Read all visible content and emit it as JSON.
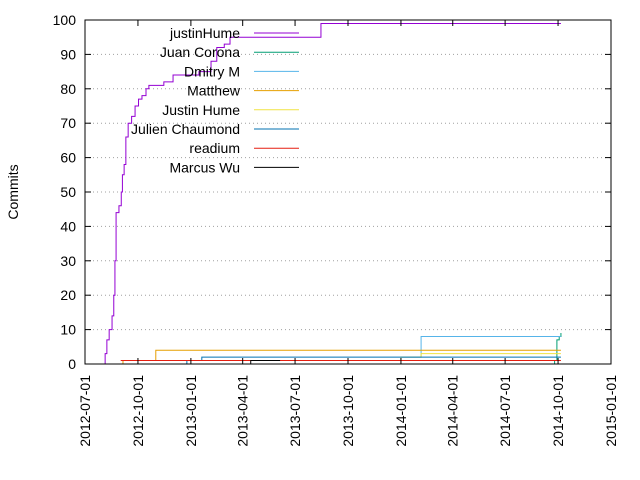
{
  "chart_data": {
    "type": "line",
    "title": "",
    "xlabel": "",
    "ylabel": "Commits",
    "ylim": [
      0,
      100
    ],
    "xlim": [
      "2012-07-01",
      "2015-01-01"
    ],
    "grid": "horizontal dotted",
    "legend_position": "top-left",
    "y_ticks": [
      "0",
      "10",
      "20",
      "30",
      "40",
      "50",
      "60",
      "70",
      "80",
      "90",
      "100"
    ],
    "x_ticks": [
      "2012-07-01",
      "2012-10-01",
      "2013-01-01",
      "2013-04-01",
      "2013-07-01",
      "2013-10-01",
      "2014-01-01",
      "2014-04-01",
      "2014-07-01",
      "2014-10-01",
      "2015-01-01"
    ],
    "series": [
      {
        "name": "justinHume",
        "color": "#9400d3",
        "step": true,
        "points": [
          [
            "2012-08-01",
            0
          ],
          [
            "2012-08-05",
            3
          ],
          [
            "2012-08-08",
            7
          ],
          [
            "2012-08-12",
            10
          ],
          [
            "2012-08-17",
            14
          ],
          [
            "2012-08-20",
            20
          ],
          [
            "2012-08-22",
            30
          ],
          [
            "2012-08-24",
            44
          ],
          [
            "2012-08-29",
            46
          ],
          [
            "2012-09-02",
            50
          ],
          [
            "2012-09-04",
            55
          ],
          [
            "2012-09-07",
            58
          ],
          [
            "2012-09-10",
            66
          ],
          [
            "2012-09-14",
            70
          ],
          [
            "2012-09-20",
            72
          ],
          [
            "2012-09-26",
            75
          ],
          [
            "2012-10-02",
            77
          ],
          [
            "2012-10-08",
            78
          ],
          [
            "2012-10-15",
            80
          ],
          [
            "2012-10-20",
            81
          ],
          [
            "2012-11-15",
            82
          ],
          [
            "2012-12-01",
            84
          ],
          [
            "2013-01-15",
            85
          ],
          [
            "2013-02-05",
            88
          ],
          [
            "2013-02-15",
            92
          ],
          [
            "2013-02-28",
            93
          ],
          [
            "2013-03-10",
            95
          ],
          [
            "2013-08-15",
            99
          ],
          [
            "2014-10-06",
            99
          ]
        ]
      },
      {
        "name": "Juan Corona",
        "color": "#009e73",
        "step": true,
        "points": [
          [
            "2014-05-01",
            0
          ],
          [
            "2014-09-25",
            1
          ],
          [
            "2014-09-29",
            7
          ],
          [
            "2014-10-03",
            8
          ],
          [
            "2014-10-06",
            9
          ]
        ]
      },
      {
        "name": "Dmitry M",
        "color": "#56b4e9",
        "step": true,
        "points": [
          [
            "2013-10-15",
            1
          ],
          [
            "2014-01-01",
            2
          ],
          [
            "2014-02-05",
            8
          ],
          [
            "2014-09-27",
            8
          ],
          [
            "2014-10-06",
            8
          ]
        ]
      },
      {
        "name": "Matthew",
        "color": "#e69f00",
        "step": true,
        "points": [
          [
            "2012-09-01",
            0
          ],
          [
            "2012-09-05",
            1
          ],
          [
            "2012-11-01",
            4
          ],
          [
            "2014-10-06",
            4
          ]
        ]
      },
      {
        "name": "Justin Hume",
        "color": "#f0e442",
        "step": true,
        "points": [
          [
            "2013-01-01",
            1
          ],
          [
            "2014-01-01",
            2
          ],
          [
            "2014-02-05",
            3
          ],
          [
            "2014-10-06",
            3
          ]
        ]
      },
      {
        "name": "Julien Chaumond",
        "color": "#0072b2",
        "step": true,
        "points": [
          [
            "2012-12-15",
            0
          ],
          [
            "2012-12-25",
            1
          ],
          [
            "2013-01-20",
            2
          ],
          [
            "2014-10-06",
            2
          ]
        ]
      },
      {
        "name": "readium",
        "color": "#e51e10",
        "step": true,
        "points": [
          [
            "2012-09-01",
            1
          ],
          [
            "2014-10-06",
            1
          ]
        ]
      },
      {
        "name": "Marcus Wu",
        "color": "#000000",
        "step": true,
        "points": [
          [
            "2013-04-01",
            0
          ],
          [
            "2013-04-15",
            1
          ],
          [
            "2013-06-05",
            1
          ]
        ]
      }
    ]
  }
}
